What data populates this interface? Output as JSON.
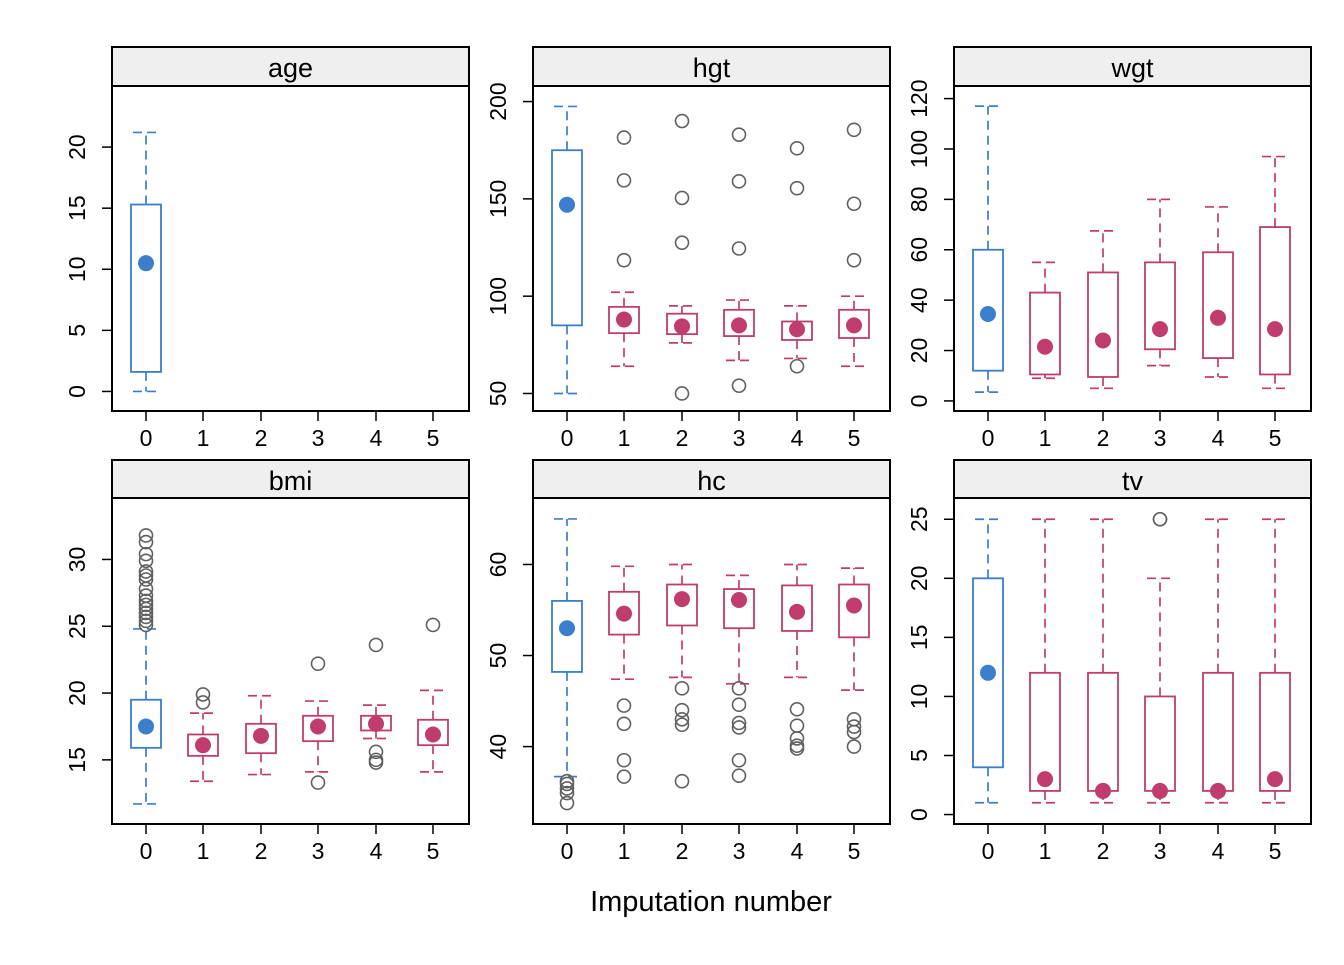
{
  "chart_data": {
    "type": "box",
    "xlabel": "Imputation number",
    "ylabel": "",
    "x_categories": [
      "0",
      "1",
      "2",
      "3",
      "4",
      "5"
    ],
    "colors": {
      "observed": "#3B7ECB",
      "imputed": "#C03C6E",
      "outlier": "#606060",
      "strip": "#EFEFEF"
    },
    "panels": [
      {
        "name": "age",
        "ylim": [
          -1.6,
          25
        ],
        "yticks": [
          0,
          5,
          10,
          15,
          20
        ],
        "boxes": [
          {
            "imp": "0",
            "whisker_low": 0.0,
            "q1": 1.6,
            "median": 10.5,
            "q3": 15.3,
            "whisker_high": 21.2,
            "outliers": []
          }
        ]
      },
      {
        "name": "hgt",
        "ylim": [
          41,
          208
        ],
        "yticks": [
          50,
          100,
          150,
          200
        ],
        "boxes": [
          {
            "imp": "0",
            "whisker_low": 50,
            "q1": 85,
            "median": 147,
            "q3": 175,
            "whisker_high": 197.5,
            "outliers": []
          },
          {
            "imp": "1",
            "whisker_low": 64,
            "q1": 81,
            "median": 88,
            "q3": 94.5,
            "whisker_high": 102,
            "outliers": [
              118.5,
              159.5,
              181.5
            ]
          },
          {
            "imp": "2",
            "whisker_low": 76,
            "q1": 80.5,
            "median": 84.5,
            "q3": 91,
            "whisker_high": 95,
            "outliers": [
              50,
              127.5,
              150.5,
              190
            ]
          },
          {
            "imp": "3",
            "whisker_low": 67,
            "q1": 79.5,
            "median": 85,
            "q3": 93,
            "whisker_high": 98,
            "outliers": [
              54,
              124.5,
              159,
              183
            ]
          },
          {
            "imp": "4",
            "whisker_low": 68,
            "q1": 77.5,
            "median": 83,
            "q3": 87,
            "whisker_high": 95,
            "outliers": [
              64,
              155.5,
              176
            ]
          },
          {
            "imp": "5",
            "whisker_low": 64,
            "q1": 78.5,
            "median": 85,
            "q3": 93,
            "whisker_high": 100,
            "outliers": [
              118.5,
              147.5,
              185.5
            ]
          }
        ]
      },
      {
        "name": "wgt",
        "ylim": [
          -4,
          125
        ],
        "yticks": [
          0,
          20,
          40,
          60,
          80,
          100,
          120
        ],
        "boxes": [
          {
            "imp": "0",
            "whisker_low": 3.5,
            "q1": 12,
            "median": 34.5,
            "q3": 60,
            "whisker_high": 117,
            "outliers": []
          },
          {
            "imp": "1",
            "whisker_low": 9,
            "q1": 10.5,
            "median": 21.5,
            "q3": 43,
            "whisker_high": 55,
            "outliers": []
          },
          {
            "imp": "2",
            "whisker_low": 5,
            "q1": 9.5,
            "median": 24,
            "q3": 51,
            "whisker_high": 67.5,
            "outliers": []
          },
          {
            "imp": "3",
            "whisker_low": 14,
            "q1": 20.5,
            "median": 28.5,
            "q3": 55,
            "whisker_high": 80,
            "outliers": []
          },
          {
            "imp": "4",
            "whisker_low": 9.5,
            "q1": 17,
            "median": 33,
            "q3": 59,
            "whisker_high": 77,
            "outliers": []
          },
          {
            "imp": "5",
            "whisker_low": 5,
            "q1": 10.5,
            "median": 28.5,
            "q3": 69,
            "whisker_high": 97,
            "outliers": []
          }
        ]
      },
      {
        "name": "bmi",
        "ylim": [
          10.2,
          34.6
        ],
        "yticks": [
          15,
          20,
          25,
          30
        ],
        "boxes": [
          {
            "imp": "0",
            "whisker_low": 11.7,
            "q1": 15.9,
            "median": 17.5,
            "q3": 19.5,
            "whisker_high": 24.8,
            "outliers": [
              25.1,
              25.4,
              25.7,
              26.0,
              26.3,
              26.6,
              26.9,
              27.3,
              27.8,
              28.5,
              28.8,
              29.1,
              29.9,
              30.4,
              31.3,
              31.8
            ]
          },
          {
            "imp": "1",
            "whisker_low": 13.4,
            "q1": 15.3,
            "median": 16.1,
            "q3": 16.9,
            "whisker_high": 18.5,
            "outliers": [
              19.3,
              19.9
            ]
          },
          {
            "imp": "2",
            "whisker_low": 13.9,
            "q1": 15.5,
            "median": 16.8,
            "q3": 17.7,
            "whisker_high": 19.8,
            "outliers": []
          },
          {
            "imp": "3",
            "whisker_low": 14.1,
            "q1": 16.4,
            "median": 17.5,
            "q3": 18.3,
            "whisker_high": 19.4,
            "outliers": [
              13.3,
              22.2
            ]
          },
          {
            "imp": "4",
            "whisker_low": 16.6,
            "q1": 17.2,
            "median": 17.7,
            "q3": 18.3,
            "whisker_high": 19.1,
            "outliers": [
              14.8,
              15.0,
              15.6,
              23.6
            ]
          },
          {
            "imp": "5",
            "whisker_low": 14.1,
            "q1": 16.1,
            "median": 16.9,
            "q3": 18.0,
            "whisker_high": 20.2,
            "outliers": [
              25.1
            ]
          }
        ]
      },
      {
        "name": "hc",
        "ylim": [
          31.5,
          67.3
        ],
        "yticks": [
          40,
          50,
          60
        ],
        "boxes": [
          {
            "imp": "0",
            "whisker_low": 36.7,
            "q1": 48.2,
            "median": 53.0,
            "q3": 56.0,
            "whisker_high": 65.0,
            "outliers": [
              33.8,
              34.9,
              35.4,
              35.9,
              36.2
            ]
          },
          {
            "imp": "1",
            "whisker_low": 47.4,
            "q1": 52.3,
            "median": 54.6,
            "q3": 57.0,
            "whisker_high": 59.8,
            "outliers": [
              36.7,
              38.5,
              42.5,
              44.5
            ]
          },
          {
            "imp": "2",
            "whisker_low": 47.6,
            "q1": 53.3,
            "median": 56.2,
            "q3": 57.8,
            "whisker_high": 60.0,
            "outliers": [
              36.2,
              42.4,
              43.0,
              44.0,
              46.4
            ]
          },
          {
            "imp": "3",
            "whisker_low": 46.9,
            "q1": 53.0,
            "median": 56.1,
            "q3": 57.3,
            "whisker_high": 58.8,
            "outliers": [
              36.8,
              38.5,
              42.1,
              42.6,
              44.6,
              46.4
            ]
          },
          {
            "imp": "4",
            "whisker_low": 47.6,
            "q1": 52.7,
            "median": 54.8,
            "q3": 57.7,
            "whisker_high": 60.0,
            "outliers": [
              39.8,
              40.1,
              40.9,
              42.3,
              44.1
            ]
          },
          {
            "imp": "5",
            "whisker_low": 46.2,
            "q1": 52.0,
            "median": 55.5,
            "q3": 57.8,
            "whisker_high": 59.6,
            "outliers": [
              40.0,
              41.6,
              42.2,
              43.0
            ]
          }
        ]
      },
      {
        "name": "tv",
        "ylim": [
          -0.8,
          26.8
        ],
        "yticks": [
          0,
          5,
          10,
          15,
          20,
          25
        ],
        "boxes": [
          {
            "imp": "0",
            "whisker_low": 1,
            "q1": 4,
            "median": 12,
            "q3": 20,
            "whisker_high": 25,
            "outliers": []
          },
          {
            "imp": "1",
            "whisker_low": 1,
            "q1": 2,
            "median": 3,
            "q3": 12,
            "whisker_high": 25,
            "outliers": []
          },
          {
            "imp": "2",
            "whisker_low": 1,
            "q1": 2,
            "median": 2,
            "q3": 12,
            "whisker_high": 25,
            "outliers": []
          },
          {
            "imp": "3",
            "whisker_low": 1,
            "q1": 2,
            "median": 2,
            "q3": 10,
            "whisker_high": 20,
            "outliers": [
              25,
              25
            ]
          },
          {
            "imp": "4",
            "whisker_low": 1,
            "q1": 2,
            "median": 2,
            "q3": 12,
            "whisker_high": 25,
            "outliers": []
          },
          {
            "imp": "5",
            "whisker_low": 1,
            "q1": 2,
            "median": 3,
            "q3": 12,
            "whisker_high": 25,
            "outliers": []
          }
        ]
      }
    ]
  }
}
